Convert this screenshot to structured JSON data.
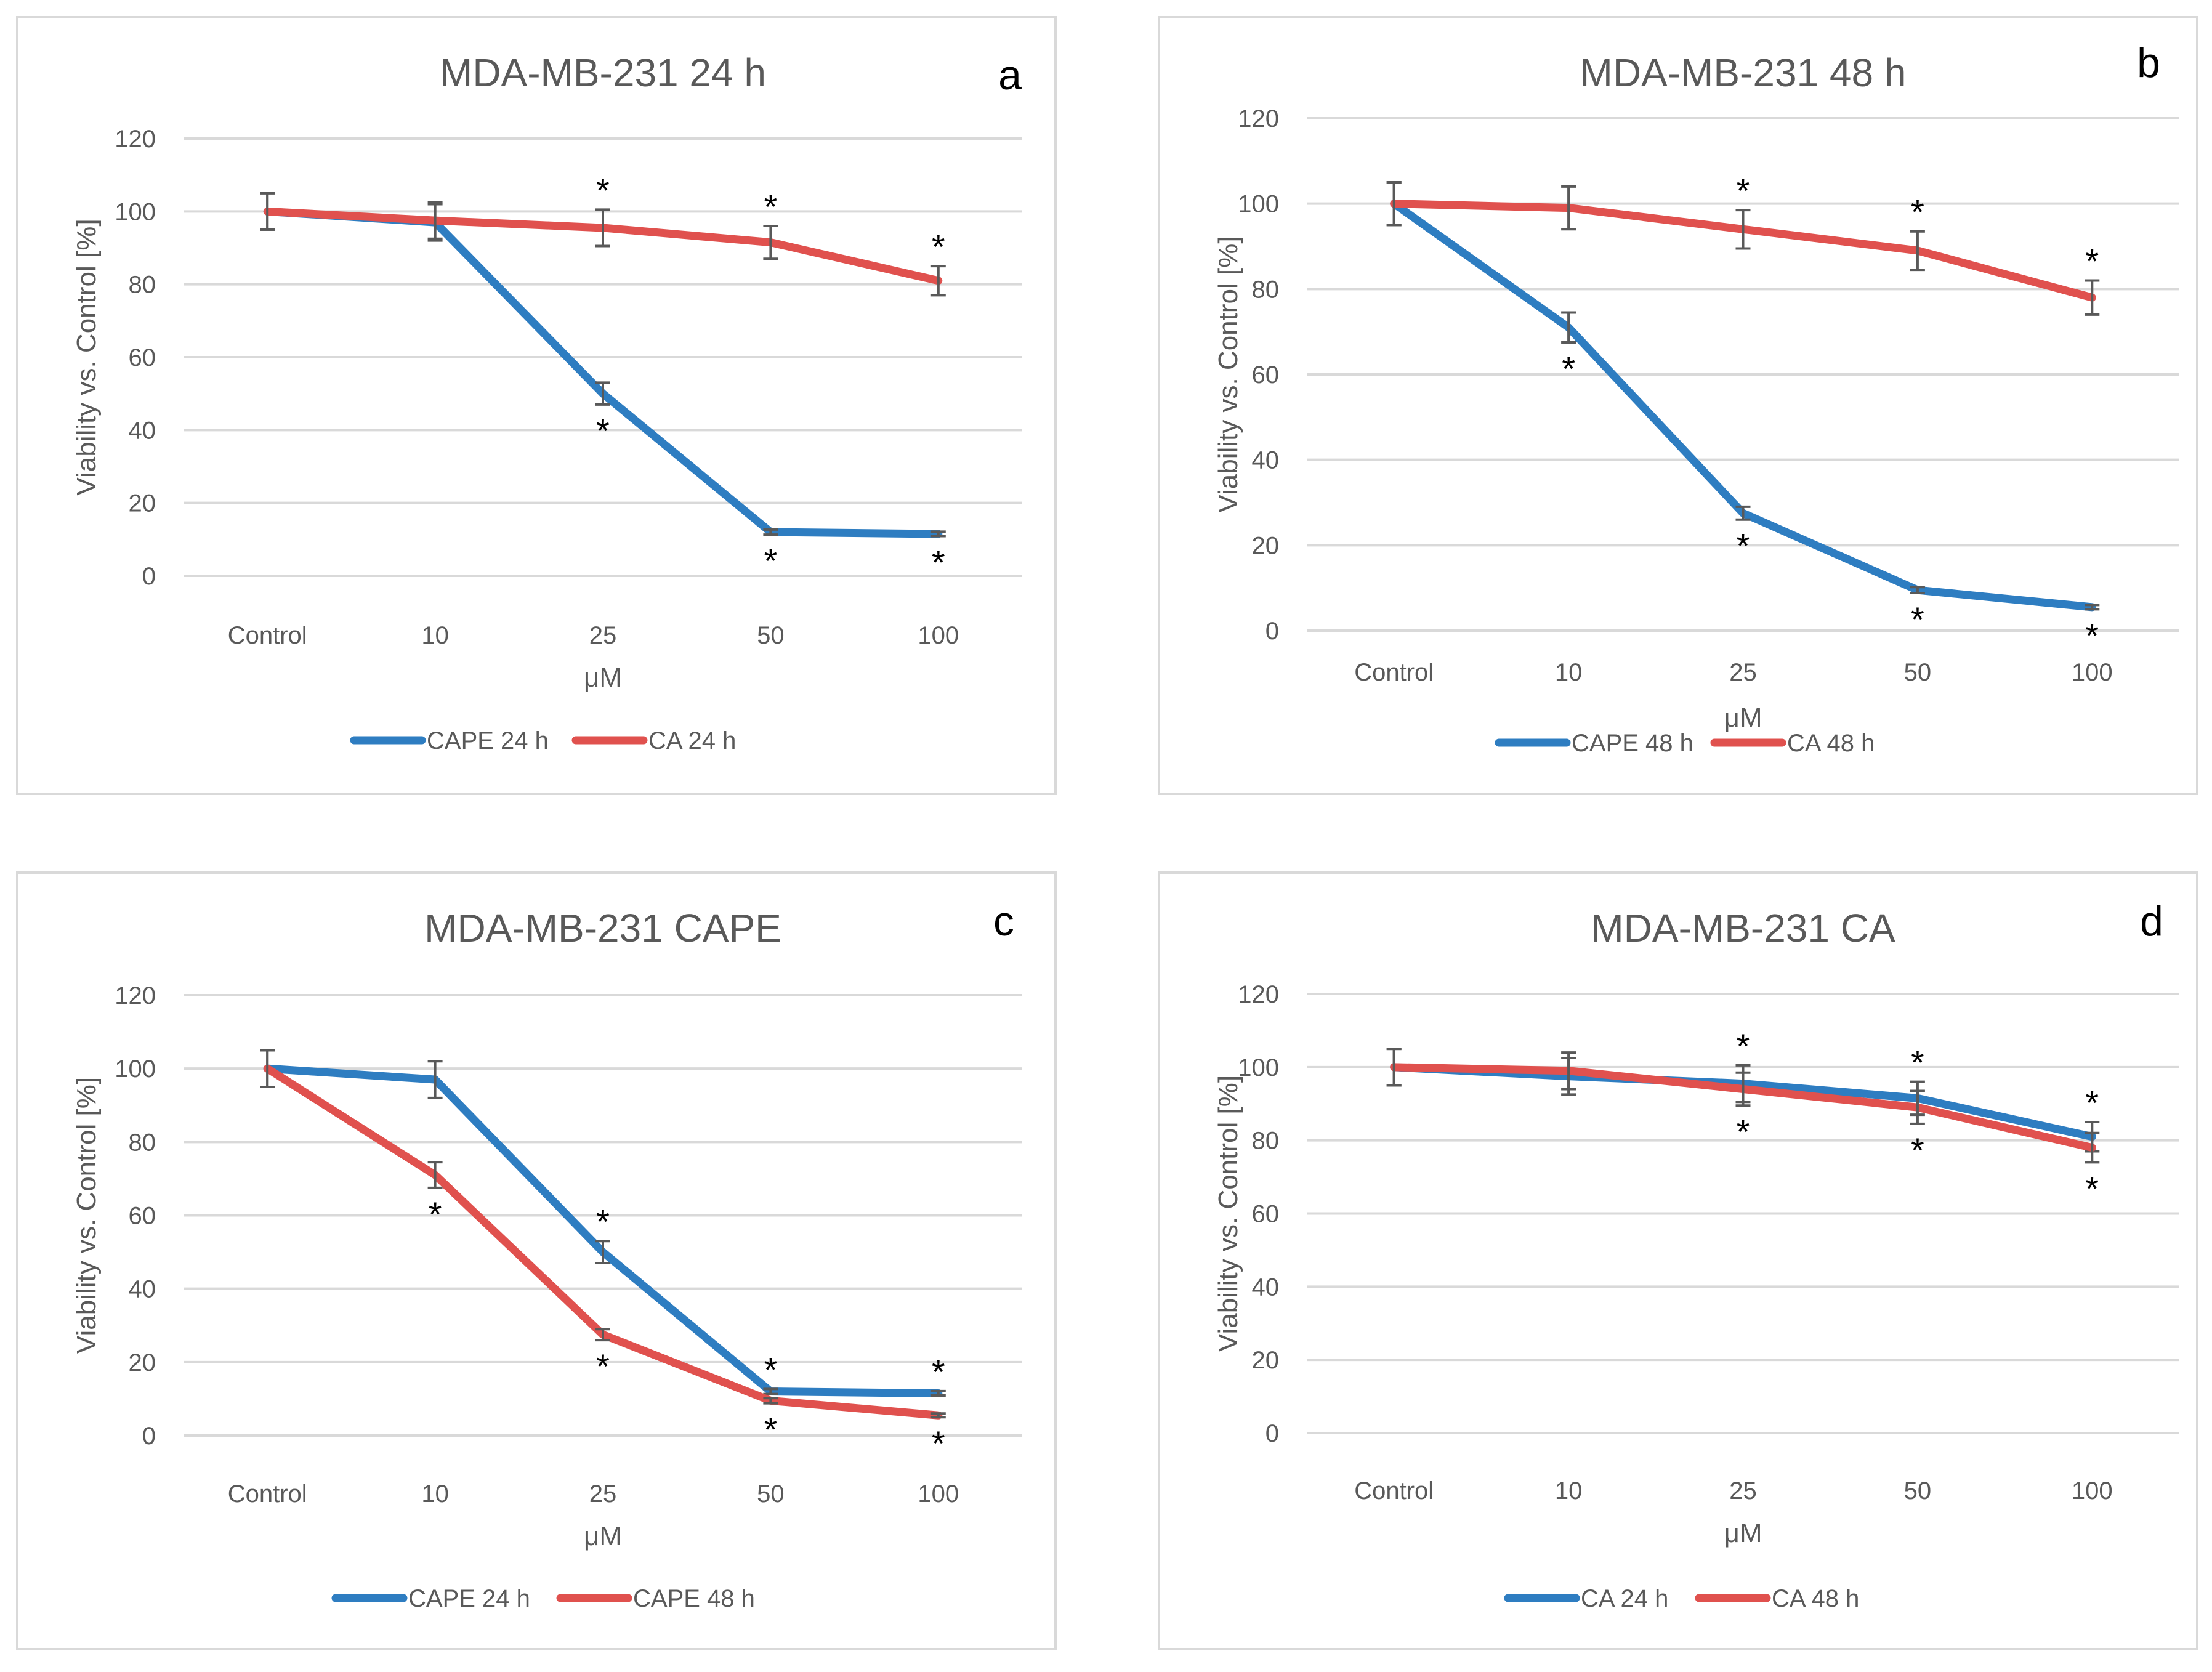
{
  "chart_data": [
    {
      "type": "line",
      "panel_letter": "a",
      "title": "MDA-MB-231 24 h",
      "xlabel": "μM",
      "ylabel": "Viability vs. Control [%]",
      "categories": [
        "Control",
        "10",
        "25",
        "50",
        "100"
      ],
      "ylim": [
        0,
        120
      ],
      "yticks": [
        "0",
        "20",
        "40",
        "60",
        "80",
        "100",
        "120"
      ],
      "grid": true,
      "legend_position": "bottom",
      "series": [
        {
          "name": "CAPE 24 h",
          "color": "#2e7dc1",
          "values": [
            100,
            97,
            50,
            12,
            11.5
          ],
          "errors": [
            5,
            5,
            3,
            0.7,
            0.6
          ],
          "stars": [
            "",
            "",
            "below",
            "below",
            "below"
          ]
        },
        {
          "name": "CA 24 h",
          "color": "#e0514e",
          "values": [
            100,
            97.5,
            95.5,
            91.5,
            81
          ],
          "errors": [
            5,
            5,
            5,
            4.5,
            4
          ],
          "stars": [
            "",
            "",
            "above",
            "above",
            "above"
          ]
        }
      ]
    },
    {
      "type": "line",
      "panel_letter": "b",
      "title": "MDA-MB-231 48 h",
      "xlabel": "μM",
      "ylabel": "Viability vs. Control [%]",
      "categories": [
        "Control",
        "10",
        "25",
        "50",
        "100"
      ],
      "ylim": [
        0,
        120
      ],
      "yticks": [
        "0",
        "20",
        "40",
        "60",
        "80",
        "100",
        "120"
      ],
      "grid": true,
      "legend_position": "bottom",
      "series": [
        {
          "name": "CAPE 48 h",
          "color": "#2e7dc1",
          "values": [
            100,
            71,
            27.5,
            9.5,
            5.5
          ],
          "errors": [
            5,
            3.5,
            1.5,
            0.7,
            0.5
          ],
          "stars": [
            "",
            "below",
            "below",
            "below",
            "below"
          ]
        },
        {
          "name": "CA 48 h",
          "color": "#e0514e",
          "values": [
            100,
            99,
            94,
            89,
            78
          ],
          "errors": [
            5,
            5,
            4.5,
            4.5,
            4
          ],
          "stars": [
            "",
            "",
            "above",
            "above",
            "above"
          ]
        }
      ]
    },
    {
      "type": "line",
      "panel_letter": "c",
      "title": "MDA-MB-231 CAPE",
      "xlabel": "μM",
      "ylabel": "Viability vs. Control [%]",
      "categories": [
        "Control",
        "10",
        "25",
        "50",
        "100"
      ],
      "ylim": [
        0,
        120
      ],
      "yticks": [
        "0",
        "20",
        "40",
        "60",
        "80",
        "100",
        "120"
      ],
      "grid": true,
      "legend_position": "bottom",
      "series": [
        {
          "name": "CAPE 24 h",
          "color": "#2e7dc1",
          "values": [
            100,
            97,
            50,
            12,
            11.5
          ],
          "errors": [
            5,
            5,
            3,
            0.7,
            0.6
          ],
          "stars": [
            "",
            "",
            "above",
            "above",
            "above"
          ]
        },
        {
          "name": "CAPE 48 h",
          "color": "#e0514e",
          "values": [
            100,
            71,
            27.5,
            9.5,
            5.5
          ],
          "errors": [
            5,
            3.5,
            1.5,
            0.7,
            0.5
          ],
          "stars": [
            "",
            "below",
            "below",
            "below",
            "below"
          ]
        }
      ]
    },
    {
      "type": "line",
      "panel_letter": "d",
      "title": "MDA-MB-231 CA",
      "xlabel": "μM",
      "ylabel": "Viability vs. Control [%]",
      "categories": [
        "Control",
        "10",
        "25",
        "50",
        "100"
      ],
      "ylim": [
        0,
        120
      ],
      "yticks": [
        "0",
        "20",
        "40",
        "60",
        "80",
        "100",
        "120"
      ],
      "grid": true,
      "legend_position": "bottom",
      "series": [
        {
          "name": "CA 24 h",
          "color": "#2e7dc1",
          "values": [
            100,
            97.5,
            95.5,
            91.5,
            81
          ],
          "errors": [
            5,
            5,
            5,
            4.5,
            4
          ],
          "stars": [
            "",
            "",
            "above",
            "above",
            "above"
          ]
        },
        {
          "name": "CA 48 h",
          "color": "#e0514e",
          "values": [
            100,
            99,
            94,
            89,
            78
          ],
          "errors": [
            5,
            5,
            4.5,
            4.5,
            4
          ],
          "stars": [
            "",
            "",
            "below",
            "below",
            "below"
          ]
        }
      ]
    }
  ],
  "significance_marker": "*"
}
